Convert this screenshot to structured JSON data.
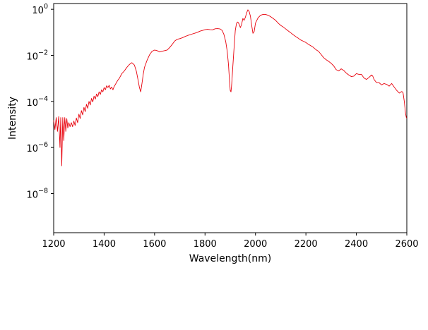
{
  "chart_data": {
    "type": "line",
    "xlabel": "Wavelength(nm)",
    "ylabel": "Intensity",
    "xlim": [
      1200,
      2600
    ],
    "ylim_log10": [
      -9.7,
      0.25
    ],
    "yscale": "log",
    "grid": false,
    "x_ticks": [
      "1200",
      "1400",
      "1600",
      "1800",
      "2000",
      "2200",
      "2400",
      "2600"
    ],
    "x_tick_values": [
      1200,
      1400,
      1600,
      1800,
      2000,
      2200,
      2400,
      2600
    ],
    "y_ticks": [
      {
        "base": "10",
        "exp": "0",
        "value": 1
      },
      {
        "base": "10",
        "exp": "−2",
        "value": 0.01
      },
      {
        "base": "10",
        "exp": "−4",
        "value": 0.0001
      },
      {
        "base": "10",
        "exp": "−6",
        "value": 1e-06
      },
      {
        "base": "10",
        "exp": "−8",
        "value": 1e-08
      }
    ],
    "series": [
      {
        "color": "#e8000b",
        "points": [
          [
            1200,
            1.5e-05
          ],
          [
            1205,
            6e-06
          ],
          [
            1210,
            2e-05
          ],
          [
            1215,
            5e-06
          ],
          [
            1220,
            2.2e-05
          ],
          [
            1225,
            1e-06
          ],
          [
            1228,
            2e-05
          ],
          [
            1232,
            1.6e-07
          ],
          [
            1236,
            2e-05
          ],
          [
            1240,
            2e-06
          ],
          [
            1244,
            2e-05
          ],
          [
            1248,
            5e-06
          ],
          [
            1252,
            1.8e-05
          ],
          [
            1256,
            7e-06
          ],
          [
            1260,
            1.2e-05
          ],
          [
            1265,
            8e-06
          ],
          [
            1270,
            1.2e-05
          ],
          [
            1275,
            8e-06
          ],
          [
            1280,
            1.4e-05
          ],
          [
            1285,
            9e-06
          ],
          [
            1290,
            1.9e-05
          ],
          [
            1295,
            1.2e-05
          ],
          [
            1300,
            2.8e-05
          ],
          [
            1305,
            1.8e-05
          ],
          [
            1310,
            4e-05
          ],
          [
            1315,
            2.6e-05
          ],
          [
            1320,
            5.5e-05
          ],
          [
            1325,
            3.6e-05
          ],
          [
            1330,
            7.5e-05
          ],
          [
            1335,
            5e-05
          ],
          [
            1340,
            0.0001
          ],
          [
            1345,
            7e-05
          ],
          [
            1350,
            0.000135
          ],
          [
            1355,
            9.5e-05
          ],
          [
            1360,
            0.00017
          ],
          [
            1365,
            0.000125
          ],
          [
            1370,
            0.00021
          ],
          [
            1375,
            0.00016
          ],
          [
            1380,
            0.00026
          ],
          [
            1385,
            0.0002
          ],
          [
            1390,
            0.00032
          ],
          [
            1395,
            0.00026
          ],
          [
            1400,
            0.0004
          ],
          [
            1405,
            0.00032
          ],
          [
            1410,
            0.00048
          ],
          [
            1415,
            0.0004
          ],
          [
            1420,
            0.0005
          ],
          [
            1425,
            0.00035
          ],
          [
            1430,
            0.00042
          ],
          [
            1435,
            0.00032
          ],
          [
            1440,
            0.00045
          ],
          [
            1445,
            0.00055
          ],
          [
            1450,
            0.0007
          ],
          [
            1455,
            0.00085
          ],
          [
            1460,
            0.001
          ],
          [
            1470,
            0.0016
          ],
          [
            1480,
            0.0021
          ],
          [
            1490,
            0.003
          ],
          [
            1500,
            0.004
          ],
          [
            1510,
            0.0048
          ],
          [
            1520,
            0.0038
          ],
          [
            1528,
            0.002
          ],
          [
            1535,
            0.0008
          ],
          [
            1540,
            0.0004
          ],
          [
            1545,
            0.00026
          ],
          [
            1550,
            0.0006
          ],
          [
            1555,
            0.0015
          ],
          [
            1560,
            0.003
          ],
          [
            1570,
            0.006
          ],
          [
            1580,
            0.0105
          ],
          [
            1590,
            0.015
          ],
          [
            1600,
            0.017
          ],
          [
            1610,
            0.016
          ],
          [
            1620,
            0.014
          ],
          [
            1630,
            0.015
          ],
          [
            1640,
            0.016
          ],
          [
            1650,
            0.017
          ],
          [
            1660,
            0.022
          ],
          [
            1670,
            0.03
          ],
          [
            1680,
            0.042
          ],
          [
            1690,
            0.05
          ],
          [
            1700,
            0.053
          ],
          [
            1710,
            0.058
          ],
          [
            1720,
            0.065
          ],
          [
            1730,
            0.072
          ],
          [
            1740,
            0.078
          ],
          [
            1750,
            0.085
          ],
          [
            1760,
            0.092
          ],
          [
            1770,
            0.1
          ],
          [
            1780,
            0.112
          ],
          [
            1790,
            0.12
          ],
          [
            1800,
            0.13
          ],
          [
            1810,
            0.135
          ],
          [
            1820,
            0.13
          ],
          [
            1830,
            0.128
          ],
          [
            1840,
            0.142
          ],
          [
            1850,
            0.145
          ],
          [
            1860,
            0.14
          ],
          [
            1868,
            0.12
          ],
          [
            1875,
            0.08
          ],
          [
            1882,
            0.04
          ],
          [
            1888,
            0.015
          ],
          [
            1893,
            0.004
          ],
          [
            1897,
            0.0008
          ],
          [
            1900,
            0.0003
          ],
          [
            1903,
            0.00026
          ],
          [
            1906,
            0.0006
          ],
          [
            1910,
            0.003
          ],
          [
            1915,
            0.02
          ],
          [
            1920,
            0.12
          ],
          [
            1925,
            0.25
          ],
          [
            1930,
            0.28
          ],
          [
            1935,
            0.23
          ],
          [
            1940,
            0.16
          ],
          [
            1945,
            0.22
          ],
          [
            1950,
            0.4
          ],
          [
            1955,
            0.33
          ],
          [
            1960,
            0.45
          ],
          [
            1965,
            0.7
          ],
          [
            1970,
            0.95
          ],
          [
            1975,
            0.8
          ],
          [
            1980,
            0.5
          ],
          [
            1985,
            0.2
          ],
          [
            1990,
            0.09
          ],
          [
            1995,
            0.11
          ],
          [
            2000,
            0.25
          ],
          [
            2010,
            0.42
          ],
          [
            2020,
            0.55
          ],
          [
            2030,
            0.6
          ],
          [
            2040,
            0.6
          ],
          [
            2050,
            0.55
          ],
          [
            2060,
            0.48
          ],
          [
            2070,
            0.4
          ],
          [
            2080,
            0.33
          ],
          [
            2090,
            0.25
          ],
          [
            2100,
            0.2
          ],
          [
            2110,
            0.17
          ],
          [
            2120,
            0.14
          ],
          [
            2130,
            0.115
          ],
          [
            2140,
            0.095
          ],
          [
            2150,
            0.078
          ],
          [
            2160,
            0.065
          ],
          [
            2170,
            0.055
          ],
          [
            2180,
            0.046
          ],
          [
            2190,
            0.041
          ],
          [
            2200,
            0.036
          ],
          [
            2210,
            0.03
          ],
          [
            2220,
            0.026
          ],
          [
            2230,
            0.022
          ],
          [
            2240,
            0.0175
          ],
          [
            2250,
            0.015
          ],
          [
            2260,
            0.011
          ],
          [
            2270,
            0.008
          ],
          [
            2280,
            0.0065
          ],
          [
            2290,
            0.0055
          ],
          [
            2300,
            0.0045
          ],
          [
            2310,
            0.0035
          ],
          [
            2320,
            0.0024
          ],
          [
            2330,
            0.0021
          ],
          [
            2340,
            0.0026
          ],
          [
            2350,
            0.0022
          ],
          [
            2360,
            0.0017
          ],
          [
            2370,
            0.0014
          ],
          [
            2380,
            0.0012
          ],
          [
            2390,
            0.00125
          ],
          [
            2400,
            0.0016
          ],
          [
            2410,
            0.0015
          ],
          [
            2420,
            0.0015
          ],
          [
            2430,
            0.00105
          ],
          [
            2440,
            0.0009
          ],
          [
            2450,
            0.0011
          ],
          [
            2460,
            0.0014
          ],
          [
            2465,
            0.00125
          ],
          [
            2470,
            0.0009
          ],
          [
            2480,
            0.00065
          ],
          [
            2490,
            0.00065
          ],
          [
            2500,
            0.00052
          ],
          [
            2510,
            0.0006
          ],
          [
            2520,
            0.00055
          ],
          [
            2530,
            0.00046
          ],
          [
            2540,
            0.0006
          ],
          [
            2550,
            0.00042
          ],
          [
            2560,
            0.0003
          ],
          [
            2570,
            0.00023
          ],
          [
            2580,
            0.00027
          ],
          [
            2585,
            0.00024
          ],
          [
            2590,
            0.0001
          ],
          [
            2595,
            3e-05
          ],
          [
            2598,
            2e-05
          ],
          [
            2600,
            1.9e-05
          ]
        ]
      }
    ]
  }
}
